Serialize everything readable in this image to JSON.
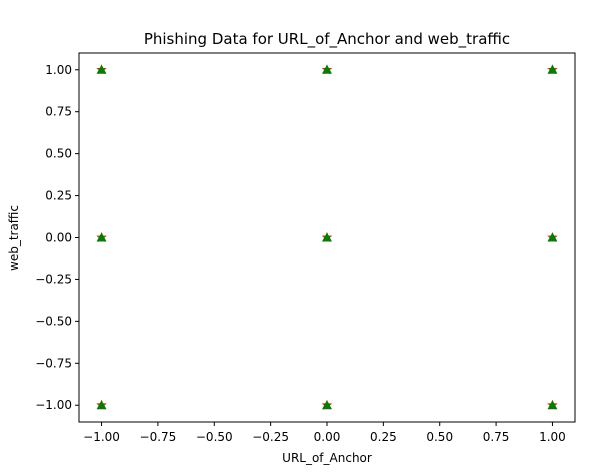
{
  "chart_data": {
    "type": "scatter",
    "title": "Phishing Data for URL_of_Anchor and web_traffic",
    "xlabel": "URL_of_Anchor",
    "ylabel": "web_traffic",
    "xlim": [
      -1.1,
      1.1
    ],
    "ylim": [
      -1.1,
      1.1
    ],
    "x_ticks": [
      -1.0,
      -0.75,
      -0.5,
      -0.25,
      0.0,
      0.25,
      0.5,
      0.75,
      1.0
    ],
    "x_tick_labels": [
      "−1.00",
      "−0.75",
      "−0.50",
      "−0.25",
      "0.00",
      "0.25",
      "0.50",
      "0.75",
      "1.00"
    ],
    "y_ticks": [
      1.0,
      0.75,
      0.5,
      0.25,
      0.0,
      -0.25,
      -0.5,
      -0.75,
      -1.0
    ],
    "y_tick_labels": [
      "1.00",
      "0.75",
      "0.50",
      "0.25",
      "0.00",
      "−0.25",
      "−0.50",
      "−0.75",
      "−1.00"
    ],
    "grid": false,
    "legend": "none",
    "series": [
      {
        "marker": "star",
        "color": "#d62728",
        "points": [
          [
            -1,
            1
          ],
          [
            0,
            1
          ],
          [
            1,
            1
          ],
          [
            -1,
            0
          ],
          [
            0,
            0
          ],
          [
            1,
            0
          ],
          [
            -1,
            -1
          ],
          [
            0,
            -1
          ],
          [
            1,
            -1
          ]
        ]
      },
      {
        "marker": "triangle",
        "color": "#008000",
        "points": [
          [
            -1,
            1
          ],
          [
            0,
            1
          ],
          [
            1,
            1
          ],
          [
            -1,
            0
          ],
          [
            0,
            0
          ],
          [
            1,
            0
          ],
          [
            -1,
            -1
          ],
          [
            0,
            -1
          ],
          [
            1,
            -1
          ]
        ]
      }
    ]
  }
}
